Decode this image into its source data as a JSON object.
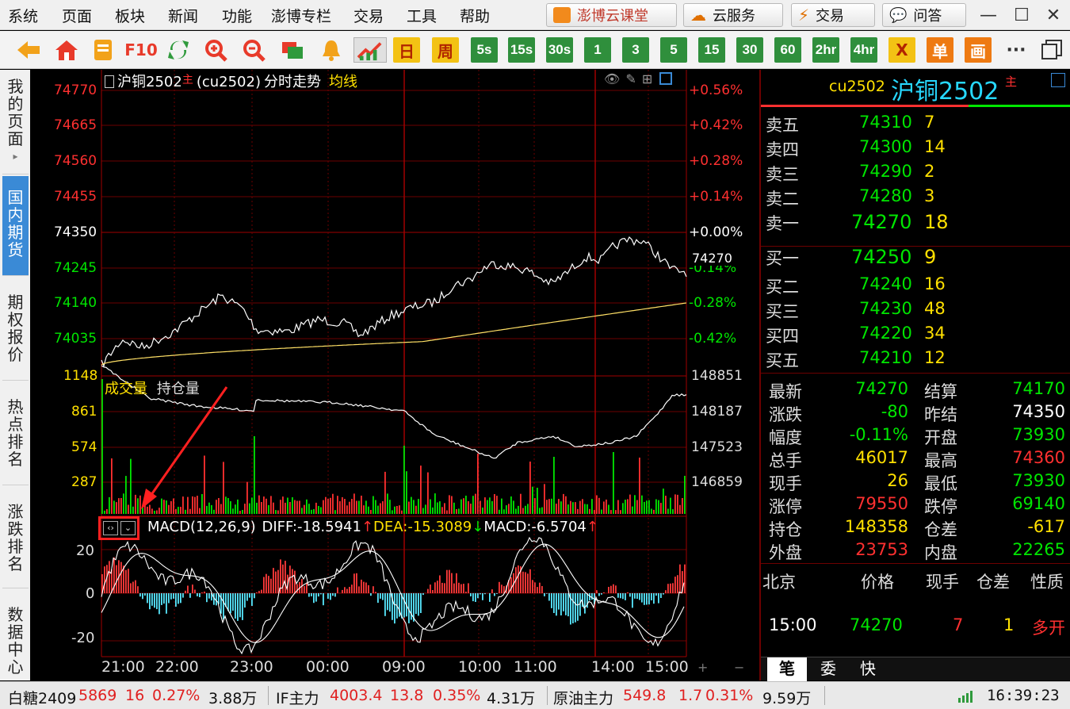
{
  "menu": [
    "系统",
    "页面",
    "板块",
    "新闻",
    "功能",
    "澎博专栏",
    "交易",
    "工具",
    "帮助"
  ],
  "top_buttons": {
    "class": "澎博云课堂",
    "cloud": "云服务",
    "trade": "交易",
    "qa": "问答"
  },
  "toolbar": {
    "f10": "F10",
    "day": "日",
    "week": "周",
    "periods": [
      "5s",
      "15s",
      "30s",
      "1",
      "3",
      "5",
      "15",
      "30",
      "60",
      "2hr",
      "4hr"
    ],
    "x": "X",
    "single": "单",
    "draw": "画",
    "more": "···"
  },
  "sidebar": {
    "tabs": [
      "我的页面",
      "国内期货",
      "期权报价",
      "热点排名",
      "涨跌排名",
      "数据中心"
    ],
    "arrow": "▸"
  },
  "chart": {
    "title_name": "沪铜2502",
    "title_main": "主",
    "title_code": "(cu2502)",
    "title_type": "分时走势",
    "title_avg": "均线",
    "price_labels": [
      "74770",
      "74665",
      "74560",
      "74455",
      "74350",
      "74245",
      "74140",
      "74035"
    ],
    "pct_labels": [
      "+0.56%",
      "+0.42%",
      "+0.28%",
      "+0.14%",
      "+0.00%",
      "-0.14%",
      "-0.28%",
      "-0.42%"
    ],
    "last_price": "74270",
    "vol_labels": [
      "1148",
      "861",
      "574",
      "287"
    ],
    "oi_labels": [
      "148851",
      "148187",
      "147523",
      "146859"
    ],
    "vol_title": "成交量",
    "oi_title": "持仓量",
    "macd": {
      "title": "MACD(12,26,9)",
      "diff": "DIFF:-18.5941",
      "diff_arrow": "↑",
      "dea": "DEA:-15.3089",
      "dea_arrow": "↓",
      "macd": "MACD:-6.5704",
      "macd_arrow": "↑",
      "y_labels": [
        "20",
        "0",
        "-20"
      ]
    },
    "time_labels": [
      "21:00",
      "22:00",
      "23:00",
      "00:00",
      "09:00",
      "10:00",
      "11:00",
      "14:00",
      "15:00"
    ],
    "plus": "+",
    "minus": "−"
  },
  "quote": {
    "code": "cu2502",
    "name": "沪铜2502",
    "main": "主",
    "asks": [
      {
        "label": "卖五",
        "price": "74310",
        "vol": "7"
      },
      {
        "label": "卖四",
        "price": "74300",
        "vol": "14"
      },
      {
        "label": "卖三",
        "price": "74290",
        "vol": "2"
      },
      {
        "label": "卖二",
        "price": "74280",
        "vol": "3"
      },
      {
        "label": "卖一",
        "price": "74270",
        "vol": "18"
      }
    ],
    "bids": [
      {
        "label": "买一",
        "price": "74250",
        "vol": "9"
      },
      {
        "label": "买二",
        "price": "74240",
        "vol": "16"
      },
      {
        "label": "买三",
        "price": "74230",
        "vol": "48"
      },
      {
        "label": "买四",
        "price": "74220",
        "vol": "34"
      },
      {
        "label": "买五",
        "price": "74210",
        "vol": "12"
      }
    ],
    "stats": [
      {
        "l1": "最新",
        "v1": "74270",
        "c1": "green",
        "l2": "结算",
        "v2": "74170",
        "c2": "green"
      },
      {
        "l1": "涨跌",
        "v1": "-80",
        "c1": "green",
        "l2": "昨结",
        "v2": "74350",
        "c2": "white"
      },
      {
        "l1": "幅度",
        "v1": "-0.11%",
        "c1": "green",
        "l2": "开盘",
        "v2": "73930",
        "c2": "green"
      },
      {
        "l1": "总手",
        "v1": "46017",
        "c1": "yellow",
        "l2": "最高",
        "v2": "74360",
        "c2": "red"
      },
      {
        "l1": "现手",
        "v1": "26",
        "c1": "yellow",
        "l2": "最低",
        "v2": "73930",
        "c2": "green"
      },
      {
        "l1": "涨停",
        "v1": "79550",
        "c1": "red",
        "l2": "跌停",
        "v2": "69140",
        "c2": "green"
      },
      {
        "l1": "持仓",
        "v1": "148358",
        "c1": "yellow",
        "l2": "仓差",
        "v2": "-617",
        "c2": "yellow"
      },
      {
        "l1": "外盘",
        "v1": "23753",
        "c1": "red",
        "l2": "内盘",
        "v2": "22265",
        "c2": "green"
      }
    ],
    "ticks_header": {
      "place": "北京",
      "price": "价格",
      "vol": "现手",
      "diff": "仓差",
      "nature": "性质"
    },
    "tick": {
      "time": "15:00",
      "price": "74270",
      "vol": "7",
      "diff": "1",
      "nature": "多开"
    },
    "tabs": [
      "笔",
      "委",
      "快"
    ]
  },
  "status": {
    "items": [
      {
        "name": "白糖2409",
        "price": "5869",
        "chg": "16",
        "pct": "0.27%",
        "vol": "3.88万"
      },
      {
        "name": "IF主力",
        "price": "4003.4",
        "chg": "13.8",
        "pct": "0.35%",
        "vol": "4.31万"
      },
      {
        "name": "原油主力",
        "price": "549.8",
        "chg": "1.7",
        "pct": "0.31%",
        "vol": "9.59万"
      }
    ],
    "time": "16:39:23"
  },
  "colors": {
    "price_up": "#ff3030",
    "price_down": "#00e600",
    "grid": "#7a0000",
    "accent": "#3a8ad6"
  }
}
